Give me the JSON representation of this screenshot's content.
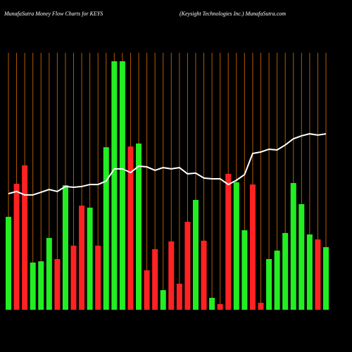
{
  "chart_data": {
    "type": "bar",
    "title": "MunafaSutra  Money Flow  Charts for KEYS",
    "subtitle": "(Keysight Technologies Inc.) MunafaSutra.com",
    "ylim": [
      0,
      100
    ],
    "values": [
      37.4,
      50.7,
      58.1,
      19.0,
      19.5,
      28.9,
      20.4,
      50.1,
      25.8,
      41.9,
      41.1,
      25.8,
      65.4,
      100,
      100,
      65.7,
      66.9,
      15.9,
      24.4,
      7.9,
      27.5,
      10.5,
      35.4,
      44.2,
      27.8,
      4.8,
      2.3,
      54.7,
      51.3,
      32.0,
      50.4,
      2.8,
      20.4,
      23.8,
      30.9,
      51.0,
      42.5,
      30.3,
      28.3,
      25.2
    ],
    "colors": [
      "#22ee22",
      "#ff2222",
      "#ff2222",
      "#22ee22",
      "#22ee22",
      "#22ee22",
      "#ff2222",
      "#22ee22",
      "#ff2222",
      "#ff2222",
      "#22ee22",
      "#ff2222",
      "#22ee22",
      "#22ee22",
      "#22ee22",
      "#ff2222",
      "#22ee22",
      "#ff2222",
      "#ff2222",
      "#22ee22",
      "#ff2222",
      "#ff2222",
      "#ff2222",
      "#22ee22",
      "#ff2222",
      "#22ee22",
      "#ff2222",
      "#ff2222",
      "#22ee22",
      "#22ee22",
      "#ff2222",
      "#ff2222",
      "#22ee22",
      "#22ee22",
      "#22ee22",
      "#22ee22",
      "#22ee22",
      "#22ee22",
      "#ff2222",
      "#22ee22"
    ],
    "line": {
      "color": "#ffffff",
      "values": [
        46.7,
        47.6,
        46.2,
        46.2,
        47.3,
        48.4,
        47.6,
        49.6,
        49.3,
        49.6,
        50.4,
        50.4,
        51.8,
        56.7,
        56.7,
        55.2,
        57.8,
        57.5,
        56.1,
        57.2,
        56.7,
        57.2,
        54.7,
        55.0,
        53.0,
        52.7,
        52.7,
        50.4,
        52.1,
        54.4,
        62.9,
        63.5,
        64.6,
        64.3,
        66.3,
        68.8,
        70.0,
        70.8,
        70.3,
        70.8
      ]
    },
    "gridline_color": "#b35a00"
  }
}
